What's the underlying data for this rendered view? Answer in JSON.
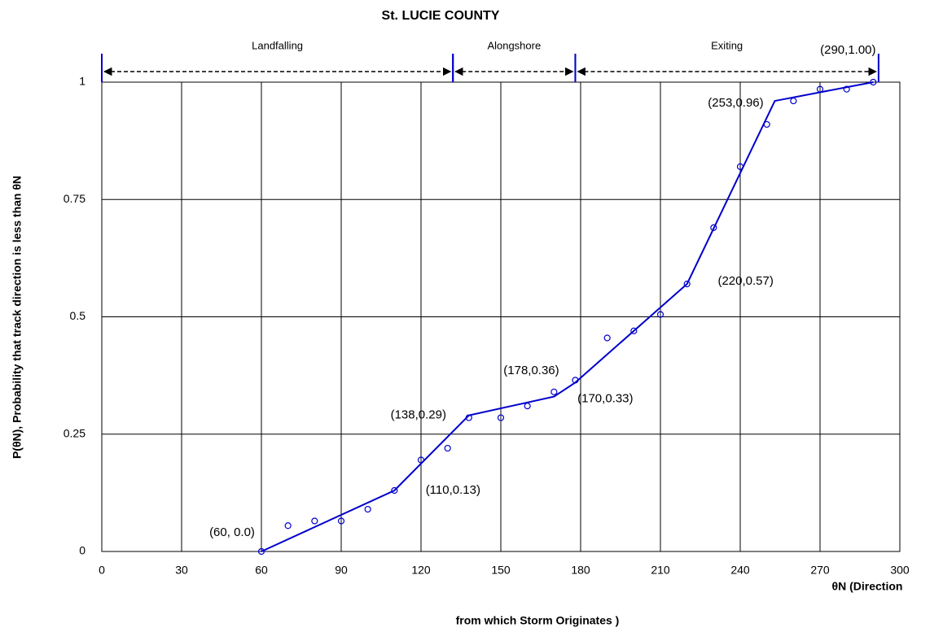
{
  "chart_data": {
    "type": "scatter",
    "title": "St. LUCIE  COUNTY",
    "xlabel": [
      "θN  (Direction",
      "from which Storm Originates )"
    ],
    "ylabel": "P(θN),  Probability that track direction is less than θN",
    "xlim": [
      0,
      300
    ],
    "ylim": [
      0,
      1
    ],
    "xticks": [
      0,
      30,
      60,
      90,
      120,
      150,
      180,
      210,
      240,
      270,
      300
    ],
    "yticks": [
      0,
      0.25,
      0.5,
      0.75,
      1
    ],
    "grid": true,
    "regions": [
      {
        "label": "Landfalling",
        "start": 0,
        "end": 132
      },
      {
        "label": "Alongshore",
        "start": 132,
        "end": 178
      },
      {
        "label": "Exiting",
        "start": 178,
        "end": 292
      }
    ],
    "series": [
      {
        "color": "#0000cc",
        "x": [
          60,
          70,
          80,
          90,
          100,
          110,
          120,
          130,
          138,
          150,
          160,
          170,
          178,
          190,
          200,
          210,
          220,
          230,
          240,
          250,
          260,
          270,
          280,
          290
        ],
        "values": [
          0,
          0.055,
          0.065,
          0.065,
          0.09,
          0.13,
          0.195,
          0.22,
          0.285,
          0.285,
          0.31,
          0.34,
          0.365,
          0.455,
          0.47,
          0.505,
          0.57,
          0.69,
          0.82,
          0.91,
          0.96,
          0.985,
          0.985,
          1.0
        ]
      },
      {
        "type": "line",
        "color": "#0000cc",
        "x": [
          60,
          110,
          138,
          170,
          178,
          220,
          253,
          290
        ],
        "values": [
          0,
          0.13,
          0.29,
          0.33,
          0.36,
          0.57,
          0.96,
          1.0
        ],
        "point_labels": [
          "(60, 0.0)",
          "(110,0.13)",
          "(138,0.29)",
          "(170,0.33)",
          "(178,0.36)",
          "(220,0.57)",
          "(253,0.96)",
          "(290,1.00)"
        ]
      }
    ]
  }
}
